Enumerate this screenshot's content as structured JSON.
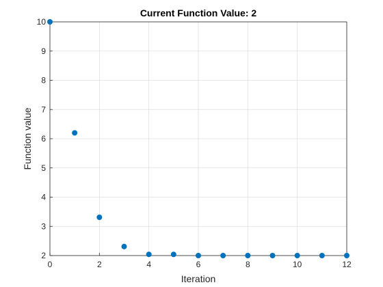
{
  "chart_data": {
    "type": "scatter",
    "title": "Current Function Value: 2",
    "xlabel": "Iteration",
    "ylabel": "Function value",
    "xlim": [
      0,
      12
    ],
    "ylim": [
      2,
      10
    ],
    "xticks": [
      "0",
      "2",
      "4",
      "6",
      "8",
      "10",
      "12"
    ],
    "yticks": [
      "2",
      "3",
      "4",
      "5",
      "6",
      "7",
      "8",
      "9",
      "10"
    ],
    "grid": true,
    "marker_color": "#0072BD",
    "x": [
      0,
      1,
      2,
      3,
      4,
      5,
      6,
      7,
      8,
      9,
      10,
      11,
      12
    ],
    "y": [
      10,
      6.2,
      3.31,
      2.31,
      2.04,
      2.04,
      2.0,
      2.0,
      2.0,
      2.0,
      2.0,
      2.0,
      2.0
    ]
  }
}
